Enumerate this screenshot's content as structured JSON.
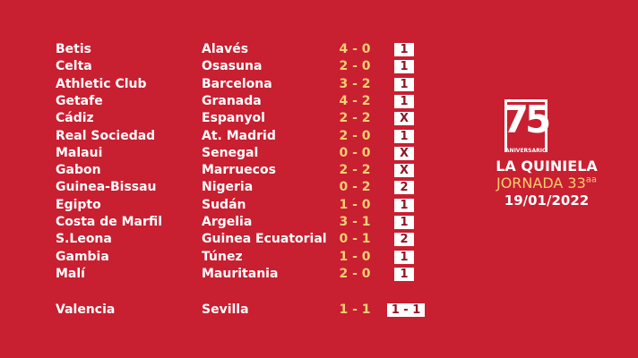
{
  "matches": [
    {
      "home": "Betis",
      "away": "Alavés",
      "score": "4 - 0",
      "sign": "1"
    },
    {
      "home": "Celta",
      "away": "Osasuna",
      "score": "2 - 0",
      "sign": "1"
    },
    {
      "home": "Athletic Club",
      "away": "Barcelona",
      "score": "3 - 2",
      "sign": "1"
    },
    {
      "home": "Getafe",
      "away": "Granada",
      "score": "4 - 2",
      "sign": "1"
    },
    {
      "home": "Cádiz",
      "away": "Espanyol",
      "score": "2 - 2",
      "sign": "X"
    },
    {
      "home": "Real Sociedad",
      "away": "At. Madrid",
      "score": "2 - 0",
      "sign": "1"
    },
    {
      "home": "Malaui",
      "away": "Senegal",
      "score": "0 - 0",
      "sign": "X"
    },
    {
      "home": "Gabon",
      "away": "Marruecos",
      "score": "2 - 2",
      "sign": "X"
    },
    {
      "home": "Guinea-Bissau",
      "away": "Nigeria",
      "score": "0 - 2",
      "sign": "2"
    },
    {
      "home": "Egipto",
      "away": "Sudán",
      "score": "1 - 0",
      "sign": "1"
    },
    {
      "home": "Costa de Marfil",
      "away": "Argelia",
      "score": "3 - 1",
      "sign": "1"
    },
    {
      "home": "S.Leona",
      "away": "Guinea Ecuatorial",
      "score": "0 - 1",
      "sign": "2"
    },
    {
      "home": "Gambia",
      "away": "Túnez",
      "score": "1 - 0",
      "sign": "1"
    },
    {
      "home": "Malí",
      "away": "Mauritania",
      "score": "2 - 0",
      "sign": "1"
    }
  ],
  "pleno": {
    "home": "Valencia",
    "away": "Sevilla",
    "score": "1 - 1",
    "sign": "1 - 1"
  },
  "logo": {
    "number": "75",
    "subtitle": "ANIVERSARIO"
  },
  "title": "LA QUINIELA",
  "jornada": "JORNADA 33",
  "jornada_suffix": "aa",
  "date": "19/01/2022",
  "colors": {
    "background": "#c81f31",
    "score": "#f6cf72",
    "sign_text": "#8f1424"
  }
}
